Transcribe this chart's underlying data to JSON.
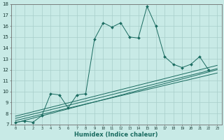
{
  "xlabel": "Humidex (Indice chaleur)",
  "bg_color": "#c8eae6",
  "grid_color": "#a8ceca",
  "line_color": "#1a6b60",
  "xlim": [
    -0.5,
    23.5
  ],
  "ylim": [
    7,
    18
  ],
  "xticks": [
    0,
    1,
    2,
    3,
    4,
    5,
    6,
    7,
    8,
    9,
    10,
    11,
    12,
    13,
    14,
    15,
    16,
    17,
    18,
    19,
    20,
    21,
    22,
    23
  ],
  "yticks": [
    7,
    8,
    9,
    10,
    11,
    12,
    13,
    14,
    15,
    16,
    17,
    18
  ],
  "main_x": [
    0,
    1,
    2,
    3,
    4,
    5,
    6,
    7,
    8,
    9,
    10,
    11,
    12,
    13,
    14,
    15,
    16,
    17,
    18,
    19,
    20,
    21,
    22
  ],
  "main_y": [
    7.2,
    7.3,
    7.2,
    7.8,
    9.8,
    9.7,
    8.5,
    9.7,
    9.8,
    14.8,
    16.3,
    15.9,
    16.3,
    15.0,
    14.9,
    17.8,
    16.0,
    13.2,
    12.5,
    12.2,
    12.5,
    13.2,
    12.0
  ],
  "diag_lines": [
    {
      "x0": 0,
      "y0": 7.15,
      "x1": 23,
      "y1": 12.0
    },
    {
      "x0": 0,
      "y0": 7.35,
      "x1": 23,
      "y1": 11.7
    },
    {
      "x0": 0,
      "y0": 7.55,
      "x1": 23,
      "y1": 12.1
    },
    {
      "x0": 0,
      "y0": 7.75,
      "x1": 23,
      "y1": 12.4
    }
  ]
}
